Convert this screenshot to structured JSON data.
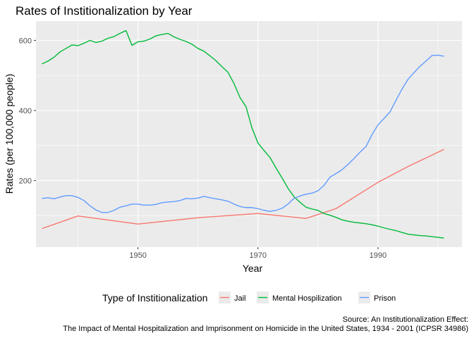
{
  "chart_data": {
    "type": "line",
    "title": "Rates of Institionalization by Year",
    "xlabel": "Year",
    "ylabel": "Rates (per 100,000 people)",
    "xlim": [
      1933,
      2004
    ],
    "ylim": [
      10,
      655
    ],
    "x_ticks": [
      1950,
      1970,
      1990
    ],
    "y_ticks": [
      200,
      400,
      600
    ],
    "x_tick_labels": [
      "1950",
      "1970",
      "1990"
    ],
    "y_tick_labels": [
      "200",
      "400",
      "600"
    ],
    "grid": true,
    "legend": {
      "title": "Type of Institionalization",
      "position": "bottom"
    },
    "caption": [
      "Source: An Institutionalization Effect:",
      "The Impact of Mental Hospitalization and Imprisonment on Homicide in the United States, 1934 - 2001 (ICPSR 34986)"
    ],
    "colors": {
      "panel_background": "#ebebeb",
      "grid_major": "#ffffff",
      "legend_key_background": "#ebebeb"
    },
    "series": [
      {
        "name": "Jail",
        "color": "#F8766D",
        "x": [
          1934,
          1940,
          1950,
          1960,
          1970,
          1978,
          1983,
          1990,
          1995,
          2001
        ],
        "y": [
          63,
          99,
          76,
          94,
          106,
          92,
          120,
          195,
          240,
          289
        ]
      },
      {
        "name": "Mental Hospilization",
        "color": "#00BA38",
        "x": [
          1934,
          1935,
          1936,
          1937,
          1938,
          1939,
          1940,
          1941,
          1942,
          1943,
          1944,
          1945,
          1946,
          1947,
          1948,
          1949,
          1950,
          1951,
          1952,
          1953,
          1954,
          1955,
          1956,
          1957,
          1958,
          1959,
          1960,
          1961,
          1962,
          1963,
          1964,
          1965,
          1966,
          1967,
          1968,
          1969,
          1970,
          1971,
          1972,
          1973,
          1974,
          1975,
          1976,
          1977,
          1978,
          1979,
          1980,
          1981,
          1982,
          1983,
          1984,
          1985,
          1986,
          1987,
          1988,
          1989,
          1990,
          1991,
          1992,
          1993,
          1994,
          1995,
          1996,
          1997,
          1998,
          1999,
          2000,
          2001
        ],
        "y": [
          533,
          541,
          552,
          567,
          577,
          587,
          585,
          592,
          600,
          594,
          598,
          606,
          611,
          620,
          628,
          586,
          596,
          598,
          604,
          613,
          617,
          620,
          610,
          603,
          597,
          589,
          577,
          569,
          556,
          542,
          525,
          509,
          477,
          437,
          411,
          350,
          307,
          286,
          266,
          236,
          208,
          178,
          154,
          138,
          124,
          119,
          115,
          106,
          101,
          95,
          88,
          84,
          81,
          79,
          77,
          74,
          70,
          65,
          61,
          57,
          52,
          47,
          45,
          43,
          42,
          40,
          38,
          36
        ]
      },
      {
        "name": "Prison",
        "color": "#619CFF",
        "x": [
          1934,
          1935,
          1936,
          1937,
          1938,
          1939,
          1940,
          1941,
          1942,
          1943,
          1944,
          1945,
          1946,
          1947,
          1948,
          1949,
          1950,
          1951,
          1952,
          1953,
          1954,
          1955,
          1956,
          1957,
          1958,
          1959,
          1960,
          1961,
          1962,
          1963,
          1964,
          1965,
          1966,
          1967,
          1968,
          1969,
          1970,
          1971,
          1972,
          1973,
          1974,
          1975,
          1976,
          1977,
          1978,
          1979,
          1980,
          1981,
          1982,
          1983,
          1984,
          1985,
          1986,
          1987,
          1988,
          1989,
          1990,
          1991,
          1992,
          1993,
          1994,
          1995,
          1996,
          1997,
          1998,
          1999,
          2000,
          2001
        ],
        "y": [
          149,
          151,
          148,
          153,
          157,
          157,
          152,
          143,
          128,
          116,
          109,
          109,
          115,
          124,
          128,
          133,
          133,
          130,
          130,
          132,
          137,
          139,
          140,
          143,
          149,
          148,
          150,
          155,
          151,
          148,
          145,
          141,
          133,
          126,
          123,
          123,
          120,
          115,
          112,
          115,
          121,
          133,
          149,
          156,
          161,
          164,
          171,
          186,
          210,
          220,
          231,
          246,
          263,
          281,
          297,
          331,
          359,
          377,
          396,
          429,
          461,
          489,
          508,
          526,
          541,
          557,
          558,
          555
        ]
      }
    ]
  }
}
